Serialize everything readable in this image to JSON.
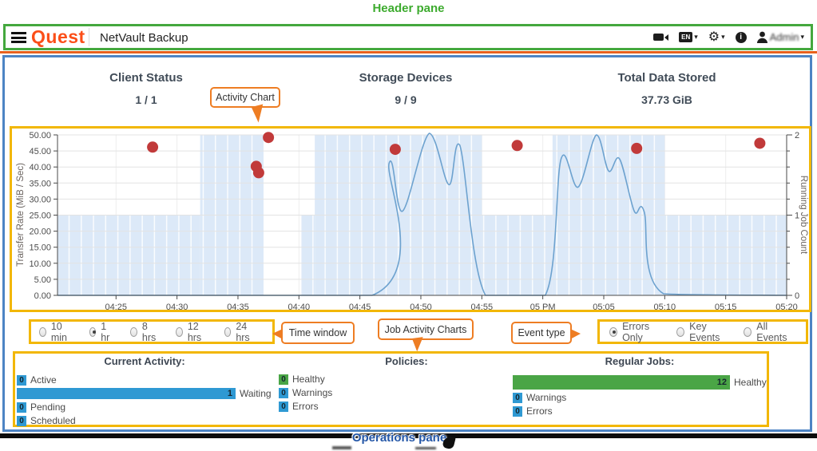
{
  "annotations": {
    "header_pane": "Header pane",
    "operations_pane": "Operations pane",
    "callouts": {
      "activity_chart": "Activity Chart",
      "time_window": "Time window",
      "job_activity_charts": "Job Activity Charts",
      "event_type": "Event type"
    },
    "colors": {
      "annotation_green": "#3dab2e",
      "annotation_gold": "#f2b705",
      "callout_orange": "#ee7d23",
      "pane_blue": "#4d84c4",
      "label_blue": "#2356a7"
    }
  },
  "header": {
    "brand": "Quest",
    "app_title": "NetVault Backup",
    "language_badge": "EN",
    "user_name": "Admin",
    "icons": [
      "video-icon",
      "language-icon",
      "settings-wrench-icon",
      "info-icon",
      "user-icon"
    ]
  },
  "stats": {
    "client_status": {
      "label": "Client Status",
      "value": "1 / 1"
    },
    "storage_devices": {
      "label": "Storage Devices",
      "value": "9 / 9"
    },
    "total_data_stored": {
      "label": "Total Data Stored",
      "value": "37.73 GiB"
    }
  },
  "chart_data": {
    "type": "mixed",
    "left_axis": {
      "label": "Transfer Rate (MiB / Sec)",
      "range": [
        0,
        50
      ],
      "tick_step": 5,
      "tick_format": "0.00"
    },
    "right_axis": {
      "label": "Running Job Count",
      "range": [
        0,
        2
      ],
      "major_ticks": [
        0,
        1,
        2
      ],
      "minor_step": 0.2
    },
    "x_axis": {
      "unit": "minutes after 04:20 PM",
      "domain": [
        0.2,
        60
      ],
      "ticks": [
        {
          "t": 5,
          "label": "04:25"
        },
        {
          "t": 10,
          "label": "04:30"
        },
        {
          "t": 15,
          "label": "04:35"
        },
        {
          "t": 20,
          "label": "04:40"
        },
        {
          "t": 25,
          "label": "04:45"
        },
        {
          "t": 30,
          "label": "04:50"
        },
        {
          "t": 35,
          "label": "04:55"
        },
        {
          "t": 40,
          "label": "05 PM"
        },
        {
          "t": 45,
          "label": "05:05"
        },
        {
          "t": 50,
          "label": "05:10"
        },
        {
          "t": 55,
          "label": "05:15"
        },
        {
          "t": 60,
          "label": "05:20"
        }
      ]
    },
    "series": [
      {
        "name": "error-events",
        "type": "scatter",
        "axis": "left",
        "color": "#c13a3a",
        "points": [
          [
            8.0,
            46.2
          ],
          [
            16.5,
            40.2
          ],
          [
            16.7,
            38.2
          ],
          [
            17.5,
            49.2
          ],
          [
            27.9,
            45.5
          ],
          [
            37.9,
            46.7
          ],
          [
            47.7,
            45.8
          ],
          [
            57.8,
            47.4
          ]
        ]
      },
      {
        "name": "running-job-count",
        "type": "line",
        "axis": "right",
        "color": "#6da2cf",
        "points": [
          [
            0.2,
            0
          ],
          [
            26.0,
            0
          ],
          [
            27.4,
            1.65
          ],
          [
            28.5,
            1.05
          ],
          [
            30.7,
            2.02
          ],
          [
            32.3,
            1.38
          ],
          [
            33.2,
            1.87
          ],
          [
            35.3,
            0
          ],
          [
            40.2,
            0
          ],
          [
            41.5,
            1.7
          ],
          [
            42.9,
            1.35
          ],
          [
            44.4,
            2.0
          ],
          [
            45.4,
            1.55
          ],
          [
            46.3,
            1.7
          ],
          [
            47.5,
            1.05
          ],
          [
            48.3,
            1.05
          ],
          [
            49.9,
            0.02
          ],
          [
            60,
            0
          ]
        ]
      },
      {
        "name": "job-activity-band",
        "type": "step-area",
        "axis": "right",
        "color": "#dce9f8",
        "segments": [
          [
            0.2,
            11.9,
            1
          ],
          [
            11.9,
            17.1,
            2
          ],
          [
            17.1,
            20.2,
            0
          ],
          [
            20.2,
            21.3,
            1
          ],
          [
            21.3,
            35.0,
            2
          ],
          [
            35.0,
            40.8,
            1
          ],
          [
            40.8,
            50.0,
            2
          ],
          [
            50.0,
            60.0,
            1
          ]
        ]
      }
    ]
  },
  "time_window": {
    "options": [
      "10 min",
      "1 hr",
      "8 hrs",
      "12 hrs",
      "24 hrs"
    ],
    "selected": "1 hr"
  },
  "event_type": {
    "options": [
      "Errors Only",
      "Key Events",
      "All Events"
    ],
    "selected": "Errors Only"
  },
  "operations": {
    "current_activity": {
      "title": "Current Activity:",
      "rows": [
        {
          "value": "0",
          "label": "Active",
          "color": "blue"
        },
        {
          "value": "1",
          "label": "Waiting",
          "color": "blue",
          "bar": true
        },
        {
          "value": "0",
          "label": "Pending",
          "color": "blue"
        },
        {
          "value": "0",
          "label": "Scheduled",
          "color": "blue"
        }
      ]
    },
    "policies": {
      "title": "Policies:",
      "rows": [
        {
          "value": "0",
          "label": "Healthy",
          "color": "green"
        },
        {
          "value": "0",
          "label": "Warnings",
          "color": "blue"
        },
        {
          "value": "0",
          "label": "Errors",
          "color": "blue"
        }
      ]
    },
    "regular_jobs": {
      "title": "Regular Jobs:",
      "rows": [
        {
          "value": "12",
          "label": "Healthy",
          "color": "green",
          "bar": true
        },
        {
          "value": "0",
          "label": "Warnings",
          "color": "blue"
        },
        {
          "value": "0",
          "label": "Errors",
          "color": "blue"
        }
      ]
    }
  }
}
